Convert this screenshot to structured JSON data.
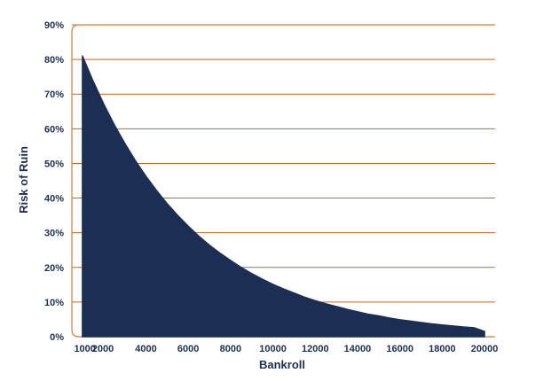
{
  "chart_data": {
    "type": "area",
    "title": "",
    "xlabel": "Bankroll",
    "ylabel": "Risk of Ruin",
    "xlim": [
      500,
      20500
    ],
    "ylim": [
      0,
      90
    ],
    "grid": true,
    "x_ticks": [
      1000,
      2000,
      4000,
      6000,
      8000,
      10000,
      12000,
      14000,
      16000,
      18000,
      20000
    ],
    "x_tick_labels": [
      "1000",
      "2000",
      "4000",
      "6000",
      "8000",
      "10000",
      "12000",
      "14000",
      "16000",
      "18000",
      "20000"
    ],
    "y_ticks": [
      0,
      10,
      20,
      30,
      40,
      50,
      60,
      70,
      80,
      90
    ],
    "y_tick_labels": [
      "0%",
      "10%",
      "20%",
      "30%",
      "40%",
      "50%",
      "60%",
      "70%",
      "80%",
      "90%"
    ],
    "series": [
      {
        "x": [
          1000,
          1500,
          2000,
          2500,
          3000,
          3500,
          4000,
          4500,
          5000,
          5500,
          6000,
          6500,
          7000,
          7500,
          8000,
          8500,
          9000,
          9500,
          10000,
          10500,
          11000,
          11500,
          12000,
          12500,
          13000,
          13500,
          14000,
          14500,
          15000,
          15500,
          16000,
          16500,
          17000,
          17500,
          18000,
          18500,
          19000,
          19500,
          20000
        ],
        "y": [
          81.0,
          73.8,
          67.2,
          61.2,
          55.8,
          50.8,
          46.3,
          42.2,
          38.4,
          35.0,
          31.9,
          29.0,
          26.4,
          24.1,
          22.0,
          20.0,
          18.2,
          16.6,
          15.1,
          13.8,
          12.6,
          11.4,
          10.4,
          9.5,
          8.7,
          7.9,
          7.2,
          6.5,
          6.0,
          5.4,
          4.9,
          4.5,
          4.1,
          3.7,
          3.4,
          3.1,
          2.8,
          2.6,
          1.5
        ]
      }
    ]
  },
  "colors": {
    "area_fill": "#1b2f55",
    "grid": "#c9671f",
    "frame": "#e07a2a",
    "text": "#1b2f55"
  }
}
